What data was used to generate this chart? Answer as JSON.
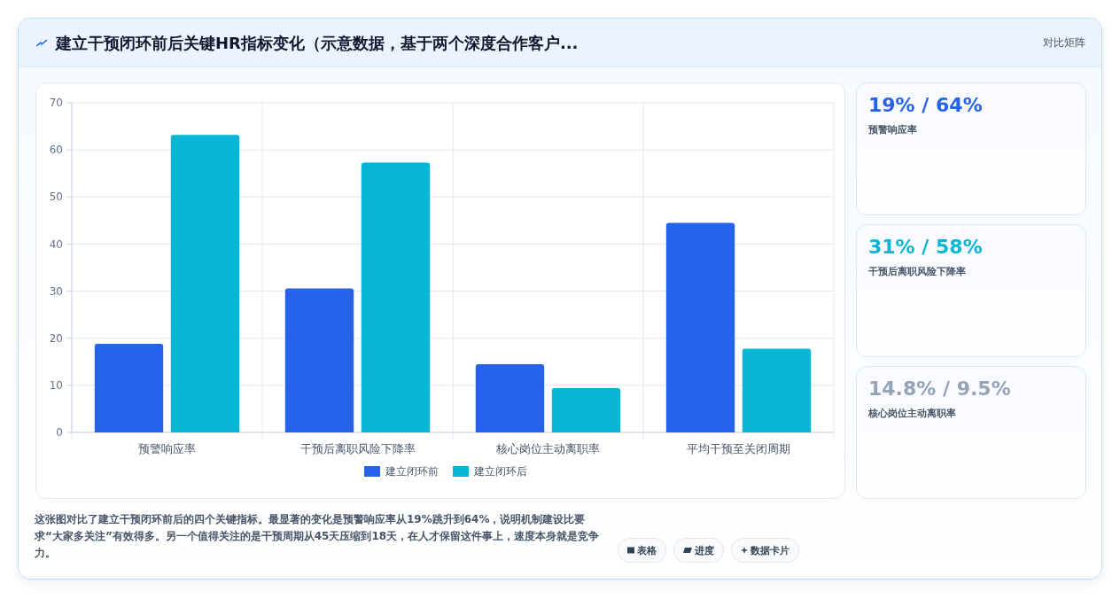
{
  "chart_data": [
    {
      "type": "bar",
      "title": "建立干预闭环前后关键HR指标变化（示意数据，基于两个深度合作客户...",
      "categories": [
        "预警响应率",
        "干预后离职风险下降率",
        "核心岗位主动离职率",
        "平均干预至关闭周期"
      ],
      "series": [
        {
          "name": "建立闭环前",
          "color": "#2563eb",
          "values": [
            18.8,
            30.6,
            14.5,
            44.5
          ]
        },
        {
          "name": "建立闭环后",
          "color": "#06b6d4",
          "values": [
            63.2,
            57.3,
            9.4,
            17.8
          ]
        }
      ],
      "ylim": [
        0,
        70
      ],
      "yticks": [
        0,
        10,
        20,
        30,
        40,
        50,
        60,
        70
      ],
      "grid": true,
      "legend": "bottom",
      "annotations": [
        "对比矩阵",
        "这张图对比了建立干预闭环前后的四个关键指标。最显著的变化是预警响应率从19%跳升到64%，说明机制建设比要求“大家多关注”有效得多。另一个值得关注的是干预周期从45天压缩到18天，在人才保留这件事上，速度本身就是竞争力。",
        "表格",
        "进度",
        "数据卡片"
      ]
    },
    {
      "type": "other",
      "annotations": [
        "19% / 64%",
        "预警响应率",
        "31% / 58%",
        "干预后离职风险下降率",
        "14.8% / 9.5%",
        "核心岗位主动离职率"
      ],
      "colors": [
        "#2563eb",
        "#06b6d4",
        "#94a3b8"
      ]
    }
  ]
}
